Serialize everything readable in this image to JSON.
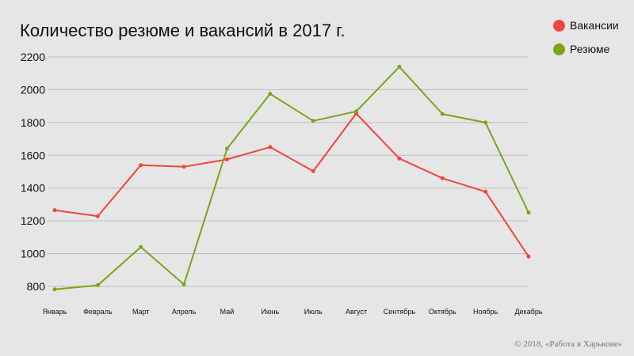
{
  "header": {
    "title": "Количество резюме и вакансий в 2017 г."
  },
  "footer": {
    "copyright": "© 2018, «Работа в Харькове»"
  },
  "chart_data": {
    "type": "line",
    "title": "Количество резюме и вакансий в 2017 г.",
    "xlabel": "",
    "ylabel": "",
    "categories": [
      "Январь",
      "Февраль",
      "Март",
      "Апрель",
      "Май",
      "Июнь",
      "Июль",
      "Август",
      "Сентябрь",
      "Октябрь",
      "Ноябрь",
      "Декабрь"
    ],
    "y_ticks": [
      800,
      1000,
      1200,
      1400,
      1600,
      1800,
      2000,
      2200
    ],
    "ylim": [
      800,
      2200
    ],
    "grid": true,
    "legend_position": "top-right",
    "series": [
      {
        "name": "Вакансии",
        "color": "#f0463c",
        "values": [
          1265,
          1228,
          1540,
          1530,
          1575,
          1650,
          1503,
          1855,
          1580,
          1460,
          1378,
          982
        ]
      },
      {
        "name": "Резюме",
        "color": "#7aa617",
        "values": [
          782,
          807,
          1040,
          812,
          1640,
          1975,
          1810,
          1868,
          2140,
          1852,
          1800,
          1250
        ]
      }
    ]
  }
}
